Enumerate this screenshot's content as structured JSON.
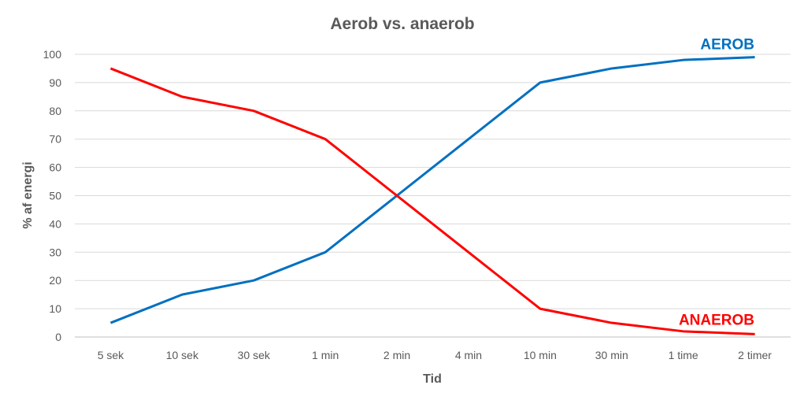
{
  "chart_data": {
    "type": "line",
    "title": "Aerob vs. anaerob",
    "xlabel": "Tid",
    "ylabel": "% af energi",
    "categories": [
      "5 sek",
      "10 sek",
      "30 sek",
      "1 min",
      "2 min",
      "4 min",
      "10 min",
      "30 min",
      "1 time",
      "2 timer"
    ],
    "ylim": [
      0,
      100
    ],
    "yticks": [
      0,
      10,
      20,
      30,
      40,
      50,
      60,
      70,
      80,
      90,
      100
    ],
    "grid": true,
    "legend": "none",
    "series": [
      {
        "name": "AEROB",
        "color": "#0070C0",
        "values": [
          5,
          15,
          20,
          30,
          50,
          70,
          90,
          95,
          98,
          99
        ]
      },
      {
        "name": "ANAEROB",
        "color": "#FF0000",
        "values": [
          95,
          85,
          80,
          70,
          50,
          30,
          10,
          5,
          2,
          1
        ]
      }
    ]
  }
}
